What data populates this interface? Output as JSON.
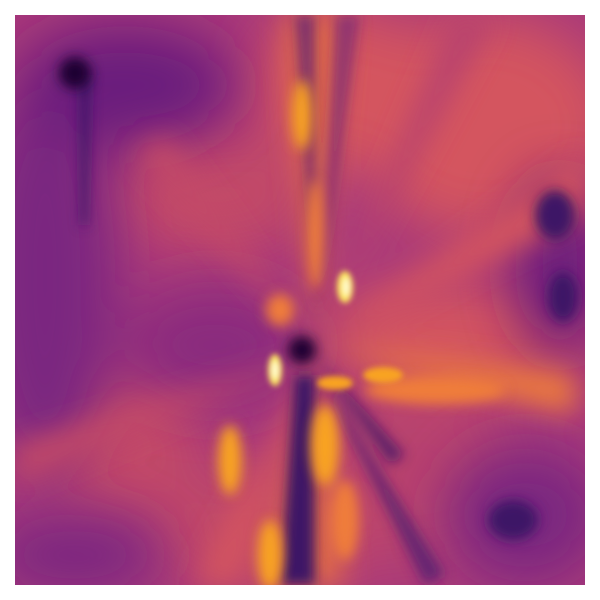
{
  "image": {
    "kind": "false-color intensity map",
    "colormap": "inferno-like",
    "palette": {
      "darkest": "#1a0633",
      "deep_violet": "#3d1566",
      "violet": "#6a1f7d",
      "magenta": "#a8397a",
      "rose": "#d4545e",
      "orange": "#ef7d3a",
      "amber": "#f8a324",
      "bright": "#fde85c",
      "white_hot": "#fffbd8"
    }
  }
}
